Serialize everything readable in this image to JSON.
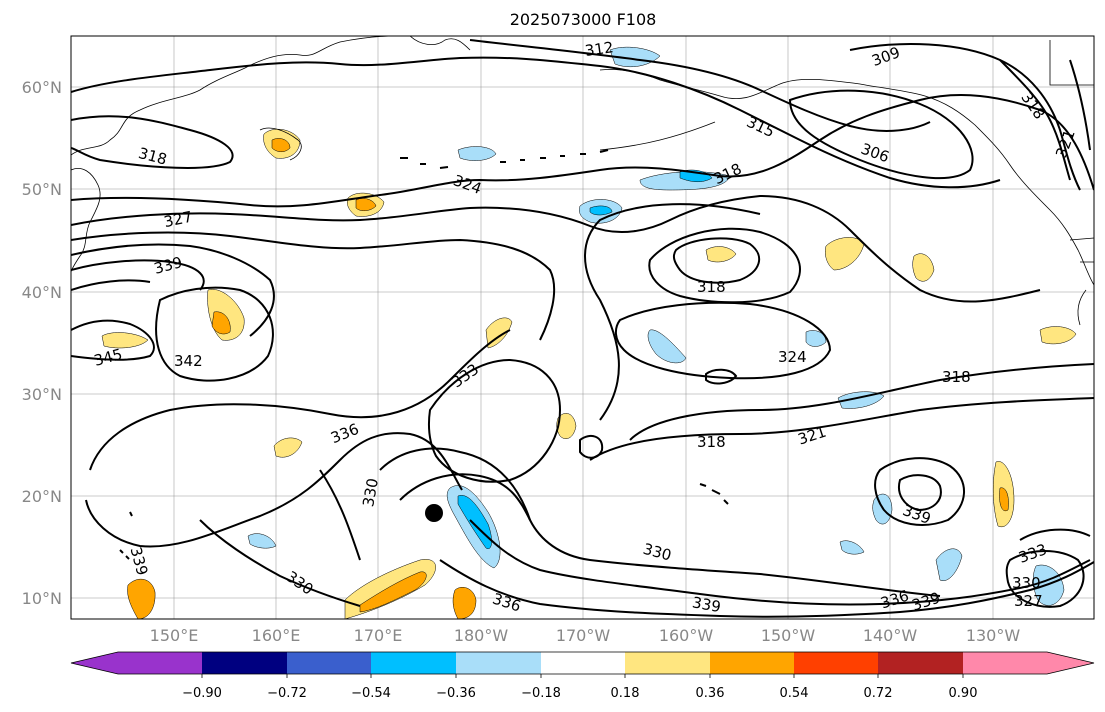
{
  "title": "2025073000 F108",
  "lat_labels": [
    "60°N",
    "50°N",
    "40°N",
    "30°N",
    "20°N",
    "10°N"
  ],
  "lon_labels": [
    "150°E",
    "160°E",
    "170°E",
    "180°W",
    "170°W",
    "160°W",
    "150°W",
    "140°W",
    "130°W"
  ],
  "colorbar": {
    "ticks": [
      "−0.90",
      "−0.72",
      "−0.54",
      "−0.36",
      "−0.18",
      "0.18",
      "0.36",
      "0.54",
      "0.72",
      "0.90"
    ],
    "colors": [
      "#9933cc",
      "#000080",
      "#3a5fcd",
      "#00bfff",
      "#a9def9",
      "#ffffff",
      "#ffe680",
      "#ffa500",
      "#ff4000",
      "#b22222",
      "#ff88aa"
    ]
  },
  "contour_labels": [
    {
      "text": "312"
    },
    {
      "text": "309"
    },
    {
      "text": "318"
    },
    {
      "text": "321"
    },
    {
      "text": "315"
    },
    {
      "text": "306"
    },
    {
      "text": "318"
    },
    {
      "text": "324"
    },
    {
      "text": "318"
    },
    {
      "text": "327"
    },
    {
      "text": "339"
    },
    {
      "text": "318"
    },
    {
      "text": "345"
    },
    {
      "text": "342"
    },
    {
      "text": "333"
    },
    {
      "text": "324"
    },
    {
      "text": "318"
    },
    {
      "text": "336"
    },
    {
      "text": "321"
    },
    {
      "text": "318"
    },
    {
      "text": "330"
    },
    {
      "text": "339"
    },
    {
      "text": "339"
    },
    {
      "text": "330"
    },
    {
      "text": "333"
    },
    {
      "text": "330"
    },
    {
      "text": "330"
    },
    {
      "text": "336"
    },
    {
      "text": "339"
    },
    {
      "text": "336"
    },
    {
      "text": "339"
    },
    {
      "text": "327"
    }
  ]
}
